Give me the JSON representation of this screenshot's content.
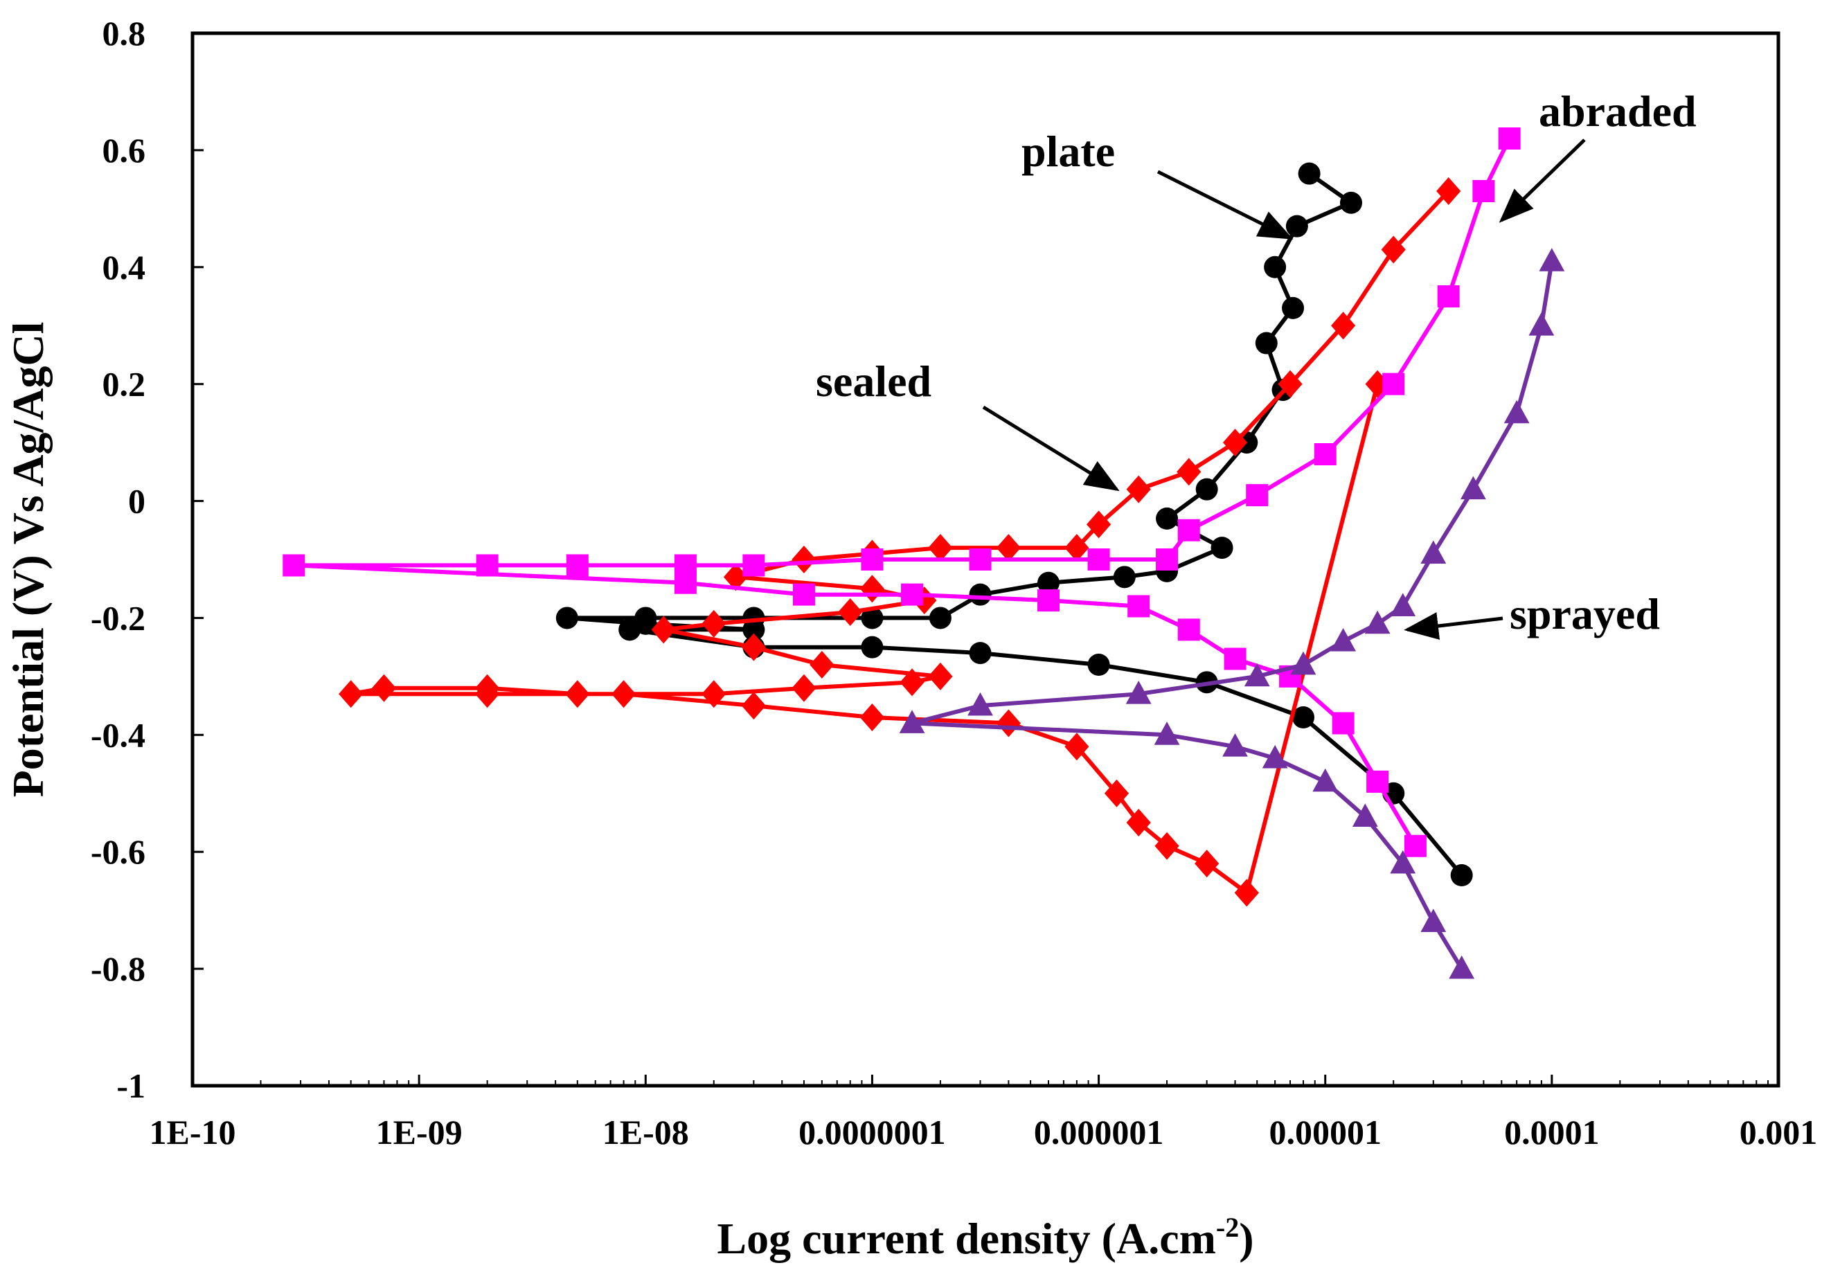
{
  "chart_data": {
    "type": "line",
    "title": "",
    "xlabel": "Log current density (A.cm",
    "xlabel_sup": "-2",
    "xlabel_suffix": ")",
    "ylabel": "Potential (V) Vs Ag/AgCl",
    "x_scale": "log",
    "xlim": [
      1e-10,
      0.001
    ],
    "ylim": [
      -1,
      0.8
    ],
    "x_ticks": [
      1e-10,
      1e-09,
      1e-08,
      1e-07,
      1e-06,
      1e-05,
      0.0001,
      0.001
    ],
    "x_tick_labels": [
      "1E-10",
      "1E-09",
      "1E-08",
      "0.0000001",
      "0.000001",
      "0.00001",
      "0.0001",
      "0.001"
    ],
    "y_ticks": [
      -1,
      -0.8,
      -0.6,
      -0.4,
      -0.2,
      0,
      0.2,
      0.4,
      0.6,
      0.8
    ],
    "y_tick_labels": [
      "-1",
      "-0.8",
      "-0.6",
      "-0.4",
      "-0.2",
      "0",
      "0.2",
      "0.4",
      "0.6",
      "0.8"
    ],
    "grid": false,
    "series": [
      {
        "name": "plate",
        "color": "#000000",
        "marker": "circle",
        "x": [
          8.5e-06,
          1.3e-05,
          7.5e-06,
          6e-06,
          7.2e-06,
          5.5e-06,
          6.5e-06,
          4.5e-06,
          3e-06,
          2e-06,
          3.5e-06,
          2e-06,
          1.3e-06,
          6e-07,
          3e-07,
          2e-07,
          1e-07,
          3e-08,
          1e-08,
          4.5e-09,
          1e-08,
          3e-08,
          8.5e-09,
          3e-08,
          1e-07,
          3e-07,
          1e-06,
          3e-06,
          8e-06,
          2e-05,
          4e-05
        ],
        "y": [
          0.56,
          0.51,
          0.47,
          0.4,
          0.33,
          0.27,
          0.19,
          0.1,
          0.02,
          -0.03,
          -0.08,
          -0.12,
          -0.13,
          -0.14,
          -0.16,
          -0.2,
          -0.2,
          -0.2,
          -0.2,
          -0.2,
          -0.21,
          -0.22,
          -0.22,
          -0.25,
          -0.25,
          -0.26,
          -0.28,
          -0.31,
          -0.37,
          -0.5,
          -0.64
        ]
      },
      {
        "name": "sealed",
        "color": "#ff0000",
        "marker": "diamond",
        "x": [
          3.5e-05,
          2e-05,
          1.2e-05,
          7e-06,
          4e-06,
          2.5e-06,
          1.5e-06,
          1e-06,
          8e-07,
          4e-07,
          2e-07,
          1e-07,
          5e-08,
          2.5e-08,
          1e-07,
          1.7e-07,
          8e-08,
          2e-08,
          1.2e-08,
          3e-08,
          6e-08,
          2e-07,
          1.5e-07,
          5e-08,
          2e-08,
          5e-09,
          2e-09,
          7e-10,
          5e-10,
          2e-09,
          8e-09,
          3e-08,
          1e-07,
          4e-07,
          8e-07,
          1.2e-06,
          1.5e-06,
          2e-06,
          3e-06,
          4.5e-06,
          1.7e-05
        ],
        "y": [
          0.53,
          0.43,
          0.3,
          0.2,
          0.1,
          0.05,
          0.02,
          -0.04,
          -0.08,
          -0.08,
          -0.08,
          -0.09,
          -0.1,
          -0.13,
          -0.15,
          -0.17,
          -0.19,
          -0.21,
          -0.22,
          -0.25,
          -0.28,
          -0.3,
          -0.31,
          -0.32,
          -0.33,
          -0.33,
          -0.32,
          -0.32,
          -0.33,
          -0.33,
          -0.33,
          -0.35,
          -0.37,
          -0.38,
          -0.42,
          -0.5,
          -0.55,
          -0.59,
          -0.62,
          -0.67,
          0.2
        ]
      },
      {
        "name": "abraded",
        "color": "#ff00ff",
        "marker": "square",
        "x": [
          6.5e-05,
          5e-05,
          3.5e-05,
          2e-05,
          1e-05,
          5e-06,
          2.5e-06,
          2e-06,
          1e-06,
          3e-07,
          1e-07,
          3e-08,
          1.5e-08,
          5e-09,
          2e-09,
          2.8e-10,
          1.5e-08,
          5e-08,
          1.5e-07,
          6e-07,
          1.5e-06,
          2.5e-06,
          4e-06,
          7e-06,
          1.2e-05,
          1.7e-05,
          2.5e-05
        ],
        "y": [
          0.62,
          0.53,
          0.35,
          0.2,
          0.08,
          0.01,
          -0.05,
          -0.1,
          -0.1,
          -0.1,
          -0.1,
          -0.11,
          -0.11,
          -0.11,
          -0.11,
          -0.11,
          -0.14,
          -0.16,
          -0.16,
          -0.17,
          -0.18,
          -0.22,
          -0.27,
          -0.3,
          -0.38,
          -0.48,
          -0.59
        ]
      },
      {
        "name": "sprayed",
        "color": "#7030a0",
        "marker": "triangle",
        "x": [
          0.0001,
          9e-05,
          7e-05,
          4.5e-05,
          3e-05,
          2.2e-05,
          1.7e-05,
          1.2e-05,
          8e-06,
          5e-06,
          1.5e-06,
          3e-07,
          1.5e-07,
          2e-06,
          4e-06,
          6e-06,
          1e-05,
          1.5e-05,
          2.2e-05,
          3e-05,
          4e-05
        ],
        "y": [
          0.41,
          0.3,
          0.15,
          0.02,
          -0.09,
          -0.18,
          -0.21,
          -0.24,
          -0.28,
          -0.3,
          -0.33,
          -0.35,
          -0.38,
          -0.4,
          -0.42,
          -0.44,
          -0.48,
          -0.54,
          -0.62,
          -0.72,
          -0.8
        ]
      }
    ],
    "annotations": [
      {
        "text": "plate",
        "target": [
          7e-06,
          0.45
        ]
      },
      {
        "text": "abraded",
        "target": [
          6e-05,
          0.48
        ]
      },
      {
        "text": "sealed",
        "target": [
          1.2e-06,
          0.02
        ]
      },
      {
        "text": "sprayed",
        "target": [
          2.3e-05,
          -0.22
        ]
      }
    ]
  }
}
